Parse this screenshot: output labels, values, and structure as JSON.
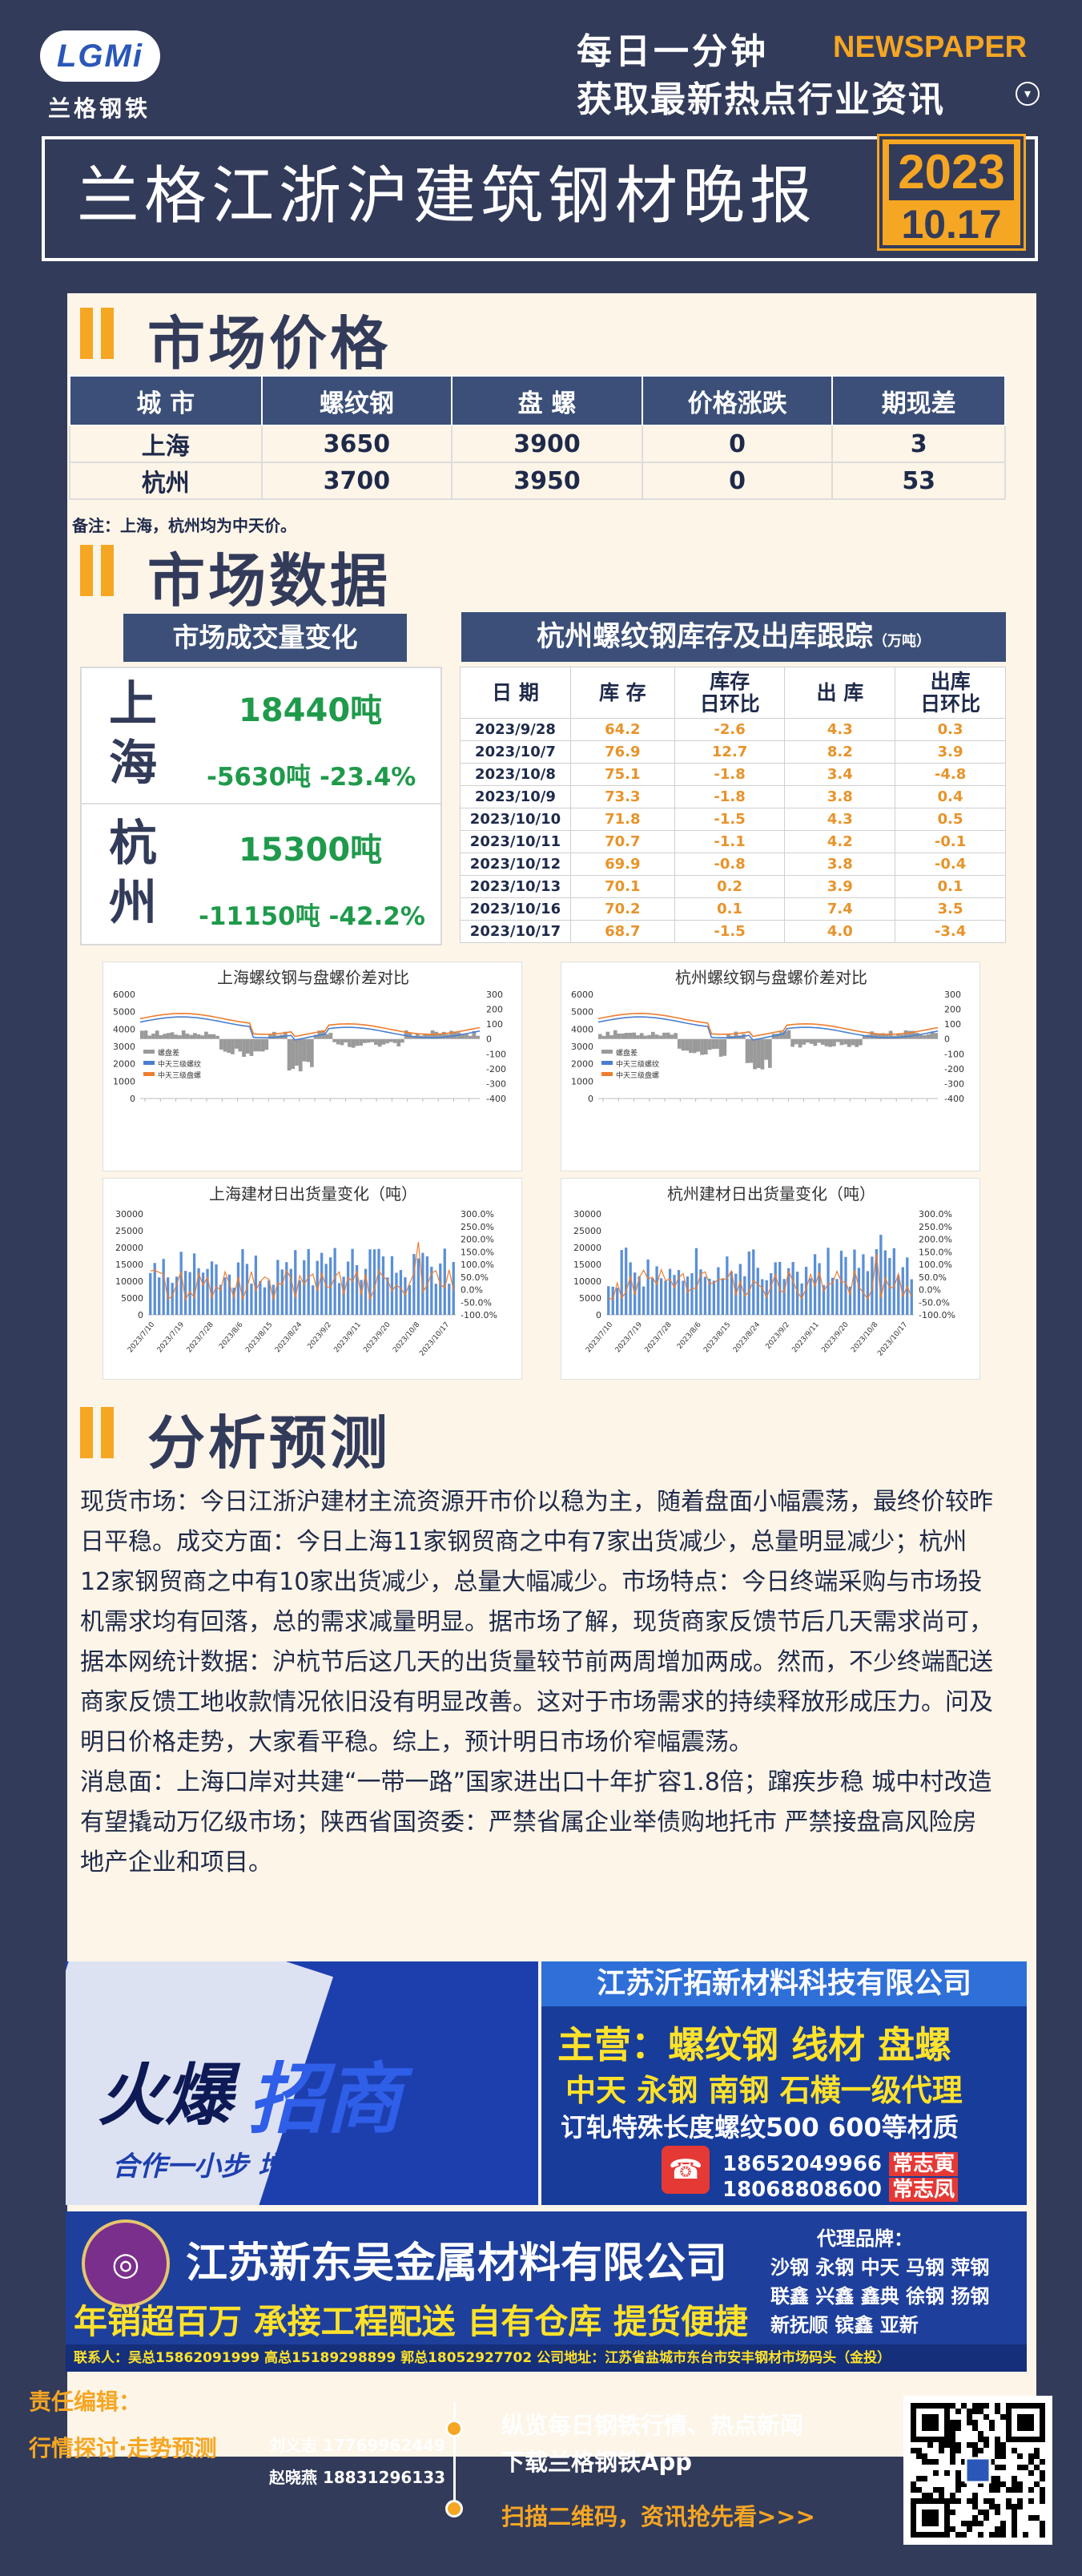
{
  "header": {
    "logo_text": "LGMi",
    "logo_sub": "兰格钢铁",
    "slogan_line1": "每日一分钟",
    "newspaper": "NEWSPAPER",
    "slogan_line2": "获取最新热点行业资讯",
    "title": "兰格江浙沪建筑钢材晚报",
    "year": "2023",
    "date": "10.17"
  },
  "price_section": {
    "title": "市场价格",
    "columns": [
      "城 市",
      "螺纹钢",
      "盘 螺",
      "价格涨跌",
      "期现差"
    ],
    "rows": [
      [
        "上海",
        "3650",
        "3900",
        "0",
        "3"
      ],
      [
        "杭州",
        "3700",
        "3950",
        "0",
        "53"
      ]
    ],
    "note": "备注：上海，杭州均为中天价。"
  },
  "market_data": {
    "title": "市场数据",
    "volume_header": "市场成交量变化",
    "shanghai": {
      "city_1": "上",
      "city_2": "海",
      "volume": "18440吨",
      "change": "-5630吨  -23.4%"
    },
    "hangzhou": {
      "city_1": "杭",
      "city_2": "州",
      "volume": "15300吨",
      "change": "-11150吨  -42.2%"
    },
    "inventory_header": "杭州螺纹钢库存及出库跟踪",
    "inventory_unit": "（万吨）",
    "inventory_columns": [
      "日 期",
      "库 存",
      "库存\n日环比",
      "出 库",
      "出库\n日环比"
    ],
    "inventory_rows": [
      [
        "2023/9/28",
        "64.2",
        "-2.6",
        "4.3",
        "0.3"
      ],
      [
        "2023/10/7",
        "76.9",
        "12.7",
        "8.2",
        "3.9"
      ],
      [
        "2023/10/8",
        "75.1",
        "-1.8",
        "3.4",
        "-4.8"
      ],
      [
        "2023/10/9",
        "73.3",
        "-1.8",
        "3.8",
        "0.4"
      ],
      [
        "2023/10/10",
        "71.8",
        "-1.5",
        "4.3",
        "0.5"
      ],
      [
        "2023/10/11",
        "70.7",
        "-1.1",
        "4.2",
        "-0.1"
      ],
      [
        "2023/10/12",
        "69.9",
        "-0.8",
        "3.8",
        "-0.4"
      ],
      [
        "2023/10/13",
        "70.1",
        "0.2",
        "3.9",
        "0.1"
      ],
      [
        "2023/10/16",
        "70.2",
        "0.1",
        "7.4",
        "3.5"
      ],
      [
        "2023/10/17",
        "68.7",
        "-1.5",
        "4.0",
        "-3.4"
      ]
    ]
  },
  "chart_data": [
    {
      "type": "line",
      "title": "上海螺纹钢与盘螺价差对比",
      "left_axis_ticks": [
        "6000",
        "5000",
        "4000",
        "3000",
        "2000",
        "1000",
        "0"
      ],
      "right_axis_ticks": [
        "300",
        "200",
        "100",
        "0",
        "-100",
        "-200",
        "-300",
        "-400"
      ],
      "ylim_left": [
        0,
        6000
      ],
      "ylim_right": [
        -400,
        300
      ],
      "series": [
        {
          "name": "螺盘差",
          "color": "#9a9a9a"
        },
        {
          "name": "中天三级螺纹",
          "color": "#4a7fd0"
        },
        {
          "name": "中天三级盘螺",
          "color": "#ee7d2e"
        }
      ]
    },
    {
      "type": "line",
      "title": "杭州螺纹钢与盘螺价差对比",
      "left_axis_ticks": [
        "6000",
        "5000",
        "4000",
        "3000",
        "2000",
        "1000",
        "0"
      ],
      "right_axis_ticks": [
        "300",
        "200",
        "100",
        "0",
        "-100",
        "-200",
        "-300",
        "-400"
      ],
      "ylim_left": [
        0,
        6000
      ],
      "ylim_right": [
        -400,
        300
      ],
      "series": [
        {
          "name": "螺盘差",
          "color": "#9a9a9a"
        },
        {
          "name": "中天三级螺纹",
          "color": "#4a7fd0"
        },
        {
          "name": "中天三级盘螺",
          "color": "#ee7d2e"
        }
      ]
    },
    {
      "type": "bar",
      "title": "上海建材日出货量变化（吨）",
      "left_axis_ticks": [
        "30000",
        "25000",
        "20000",
        "15000",
        "10000",
        "5000",
        "0"
      ],
      "right_axis_ticks": [
        "300.0%",
        "250.0%",
        "200.0%",
        "150.0%",
        "100.0%",
        "50.0%",
        "0.0%",
        "-50.0%",
        "-100.0%"
      ],
      "ylim_left": [
        0,
        30000
      ],
      "ylim_right": [
        -100,
        300
      ],
      "x_ticks": [
        "2023/7/10",
        "2023/7/19",
        "2023/7/28",
        "2023/8/6",
        "2023/8/15",
        "2023/8/24",
        "2023/9/2",
        "2023/9/11",
        "2023/9/20",
        "2023/10/8",
        "2023/10/17"
      ]
    },
    {
      "type": "bar",
      "title": "杭州建材日出货量变化（吨）",
      "left_axis_ticks": [
        "30000",
        "25000",
        "20000",
        "15000",
        "10000",
        "5000",
        "0"
      ],
      "right_axis_ticks": [
        "300.0%",
        "250.0%",
        "200.0%",
        "150.0%",
        "100.0%",
        "50.0%",
        "0.0%",
        "-50.0%",
        "-100.0%"
      ],
      "ylim_left": [
        0,
        30000
      ],
      "ylim_right": [
        -100,
        300
      ],
      "x_ticks": [
        "2023/7/10",
        "2023/7/19",
        "2023/7/28",
        "2023/8/6",
        "2023/8/15",
        "2023/8/24",
        "2023/9/2",
        "2023/9/11",
        "2023/9/20",
        "2023/10/8",
        "2023/10/17"
      ]
    }
  ],
  "analysis": {
    "title": "分析预测",
    "paragraph1": "现货市场：今日江浙沪建材主流资源开市价以稳为主，随着盘面小幅震荡，最终价较昨日平稳。成交方面：今日上海11家钢贸商之中有7家出货减少，总量明显减少；杭州12家钢贸商之中有10家出货减少，总量大幅减少。市场特点：今日终端采购与市场投机需求均有回落，总的需求减量明显。据市场了解，现货商家反馈节后几天需求尚可，据本网统计数据：沪杭节后这几天的出货量较节前两周增加两成。然而，不少终端配送商家反馈工地收款情况依旧没有明显改善。这对于市场需求的持续释放形成压力。问及明日价格走势，大家看平稳。综上，预计明日市场价窄幅震荡。",
    "paragraph2": "消息面：上海口岸对共建“一带一路”国家进出口十年扩容1.8倍；蹿疾步稳 城中村改造有望撬动万亿级市场；陕西省国资委：严禁省属企业举债购地托市 严禁接盘高风险房地产企业和项目。"
  },
  "ads": {
    "ad1_line1": "火爆",
    "ad1_line2": "招商",
    "ad1_sub": "合作一小步  增销一大步",
    "ad2_company": "江苏沂拓新材料科技有限公司",
    "ad2_main": "主营：螺纹钢 线材 盘螺",
    "ad2_brands": "中天 永钢 南钢 石横一级代理",
    "ad2_spec": "订轧特殊长度螺纹500 600等材质",
    "ad2_phone1": "18652049966",
    "ad2_name1": "常志寅",
    "ad2_phone2": "18068808600",
    "ad2_name2": "常志凤",
    "ad3_company": "江苏新东吴金属材料有限公司",
    "ad3_slogan": "年销超百万 承接工程配送 自有仓库 提货便捷",
    "ad3_brands_title": "代理品牌：",
    "ad3_brands_1": "沙钢 永钢 中天 马钢 萍钢",
    "ad3_brands_2": "联鑫 兴鑫 鑫典 徐钢 扬钢",
    "ad3_brands_3": "新抚顺 镔鑫 亚新",
    "ad3_contact": "联系人：吴总15862091999  高总15189298899  郭总18052927702  公司地址：江苏省盐城市东台市安丰钢材市场码头（金投）"
  },
  "footer": {
    "editor_label": "责任编辑：",
    "column_label": "行情探讨·走势预测",
    "editor1": "刘义志 17769962449",
    "editor2": "赵晓燕 18831296133",
    "promo1": "纵览每日钢铁行情、热点新闻",
    "promo2": "下载兰格钢铁App",
    "promo3": "扫描二维码，资讯抢先看>>>"
  }
}
